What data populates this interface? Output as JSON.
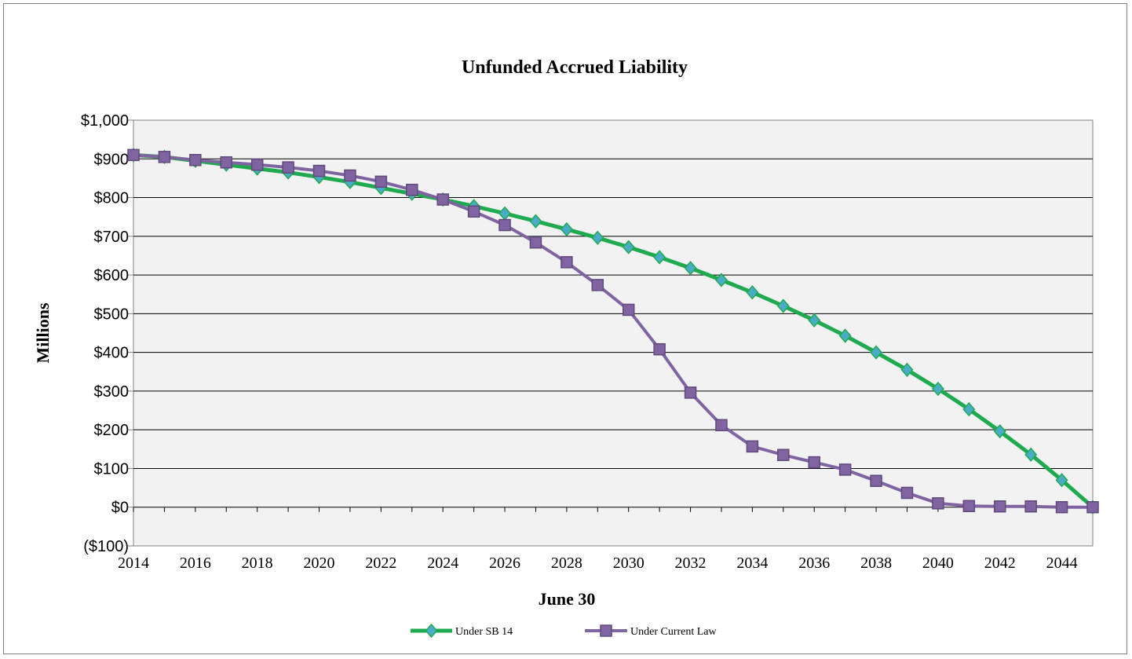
{
  "chart_data": {
    "type": "line",
    "title": "Unfunded Accrued Liability",
    "xlabel": "June 30",
    "ylabel": "Millions",
    "ylim": [
      -100,
      1000
    ],
    "xlim": [
      2014,
      2045
    ],
    "y_ticks": [
      -100,
      0,
      100,
      200,
      300,
      400,
      500,
      600,
      700,
      800,
      900,
      1000
    ],
    "y_tick_labels": [
      "($100)",
      "$0",
      "$100",
      "$200",
      "$300",
      "$400",
      "$500",
      "$600",
      "$700",
      "$800",
      "$900",
      "$1,000"
    ],
    "x_tick_labels": [
      "2014",
      "2016",
      "2018",
      "2020",
      "2022",
      "2024",
      "2026",
      "2028",
      "2030",
      "2032",
      "2034",
      "2036",
      "2038",
      "2040",
      "2042",
      "2044"
    ],
    "x": [
      2014,
      2015,
      2016,
      2017,
      2018,
      2019,
      2020,
      2021,
      2022,
      2023,
      2024,
      2025,
      2026,
      2027,
      2028,
      2029,
      2030,
      2031,
      2032,
      2033,
      2034,
      2035,
      2036,
      2037,
      2038,
      2039,
      2040,
      2041,
      2042,
      2043,
      2044,
      2045
    ],
    "grid": "horizontal",
    "legend_position": "bottom",
    "series": [
      {
        "name": "Under SB 14",
        "color": "#1faa4f",
        "marker": "diamond",
        "values": [
          910,
          905,
          895,
          885,
          875,
          865,
          853,
          840,
          825,
          810,
          795,
          778,
          759,
          739,
          718,
          696,
          672,
          646,
          618,
          587,
          555,
          520,
          483,
          443,
          400,
          355,
          306,
          253,
          196,
          136,
          70,
          0
        ]
      },
      {
        "name": "Under Current Law",
        "color": "#8064a2",
        "marker": "square",
        "values": [
          910,
          905,
          897,
          891,
          885,
          878,
          869,
          857,
          841,
          820,
          795,
          764,
          729,
          684,
          633,
          574,
          510,
          408,
          296,
          212,
          157,
          135,
          116,
          97,
          68,
          37,
          10,
          3,
          2,
          2,
          0,
          0
        ]
      }
    ]
  }
}
